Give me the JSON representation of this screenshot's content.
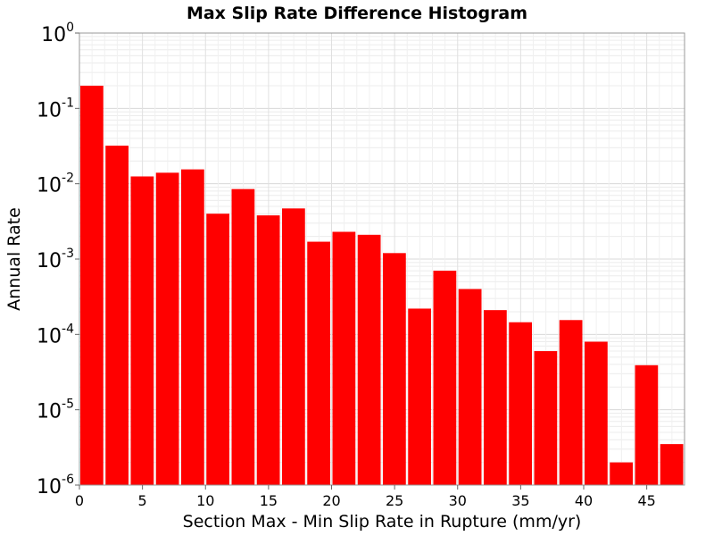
{
  "chart_data": {
    "type": "bar",
    "title": "Max Slip Rate Difference Histogram",
    "xlabel": "Section Max - Min Slip Rate in Rupture (mm/yr)",
    "ylabel": "Annual Rate",
    "x_scale": "linear",
    "y_scale": "log",
    "xlim": [
      0,
      48
    ],
    "ylim": [
      1e-06,
      1
    ],
    "x_ticks": [
      0,
      5,
      10,
      15,
      20,
      25,
      30,
      35,
      40,
      45
    ],
    "y_ticks": [
      {
        "base": "10",
        "exp": "0",
        "value": 1
      },
      {
        "base": "10",
        "exp": "-1",
        "value": 0.1
      },
      {
        "base": "10",
        "exp": "-2",
        "value": 0.01
      },
      {
        "base": "10",
        "exp": "-3",
        "value": 0.001
      },
      {
        "base": "10",
        "exp": "-4",
        "value": 0.0001
      },
      {
        "base": "10",
        "exp": "-5",
        "value": 1e-05
      },
      {
        "base": "10",
        "exp": "-6",
        "value": 1e-06
      }
    ],
    "bin_width": 2,
    "grid": true,
    "bar_color": "#ff0000",
    "bins": [
      0,
      2,
      4,
      6,
      8,
      10,
      12,
      14,
      16,
      18,
      20,
      22,
      24,
      26,
      28,
      30,
      32,
      34,
      36,
      38,
      40,
      42,
      44,
      46
    ],
    "values": [
      0.2,
      0.032,
      0.0125,
      0.014,
      0.0155,
      0.004,
      0.0085,
      0.0038,
      0.0047,
      0.0017,
      0.0023,
      0.0021,
      0.0012,
      0.00022,
      0.0007,
      0.0004,
      0.00021,
      0.000145,
      6e-05,
      0.000155,
      8e-05,
      2e-06,
      3.9e-05,
      3.5e-06
    ]
  }
}
